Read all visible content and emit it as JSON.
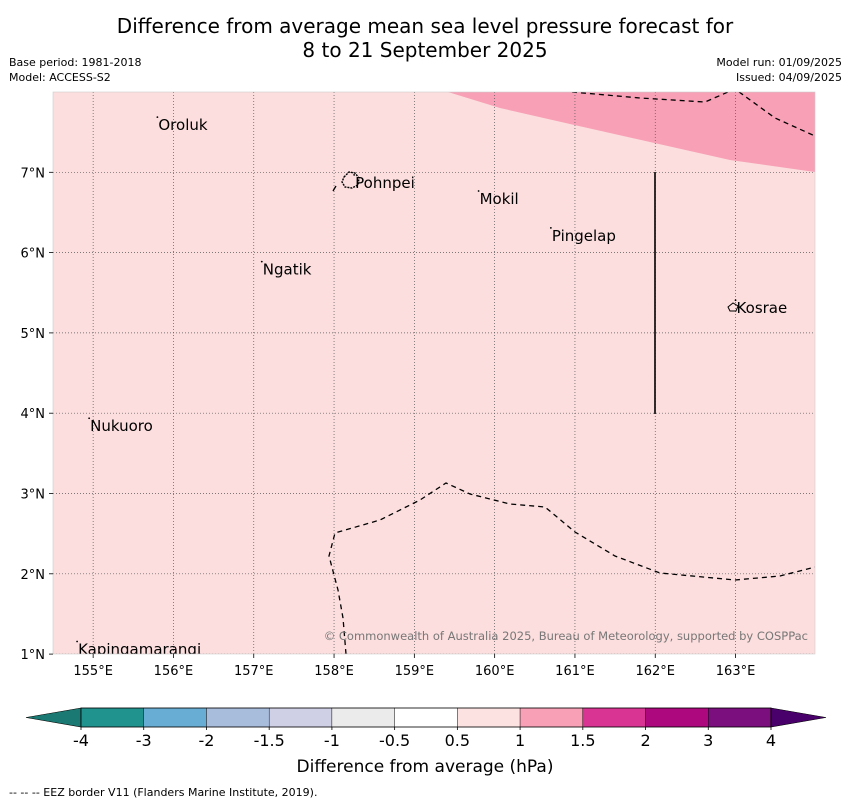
{
  "header": {
    "title_line1": "Difference from average mean sea level pressure forecast for",
    "title_line2": "8 to 21 September 2025",
    "base_period": "Base period: 1981-2018",
    "model": "Model: ACCESS-S2",
    "model_run": "Model run: 01/09/2025",
    "issued": "Issued: 04/09/2025"
  },
  "map": {
    "lon_labels": [
      "155°E",
      "156°E",
      "157°E",
      "158°E",
      "159°E",
      "160°E",
      "161°E",
      "162°E",
      "163°E"
    ],
    "lat_labels": [
      "7°N",
      "6°N",
      "5°N",
      "4°N",
      "3°N",
      "2°N",
      "1°N"
    ],
    "places": [
      {
        "name": "Oroluk",
        "lon": 155.8,
        "lat": 7.6
      },
      {
        "name": "Pohnpei",
        "lon": 158.25,
        "lat": 6.88
      },
      {
        "name": "Mokil",
        "lon": 159.8,
        "lat": 6.68
      },
      {
        "name": "Pingelap",
        "lon": 160.7,
        "lat": 6.22
      },
      {
        "name": "Ngatik",
        "lon": 157.1,
        "lat": 5.8
      },
      {
        "name": "Kosrae",
        "lon": 163.0,
        "lat": 5.32
      },
      {
        "name": "Nukuoro",
        "lon": 154.95,
        "lat": 3.85
      },
      {
        "name": "Kapingamarangi",
        "lon": 154.8,
        "lat": 1.07
      }
    ],
    "background_class": "0.5 to 1 hPa",
    "background_color": "#fcdede",
    "highlight_class": "1 to 1.5 hPa",
    "highlight_color": "#f8a0b6",
    "copyright": "© Commonwealth of Australia 2025, Bureau of Meteorology, supported by COSPPac"
  },
  "colorbar": {
    "colors": [
      "#1a7a73",
      "#21938e",
      "#68aed4",
      "#a8bcdc",
      "#cfd0e6",
      "#ebebeb",
      "#ffffff",
      "#fde2e2",
      "#f8a0b6",
      "#d93394",
      "#ad087e",
      "#7b0f7d",
      "#4a006a"
    ],
    "tick_labels": [
      "-4",
      "-3",
      "-2",
      "-1.5",
      "-1",
      "-0.5",
      "0.5",
      "1",
      "1.5",
      "2",
      "3",
      "4"
    ],
    "label": "Difference from average (hPa)"
  },
  "footer": {
    "eez_note": "--  --  -- EEZ border V11 (Flanders Marine Institute, 2019)."
  }
}
